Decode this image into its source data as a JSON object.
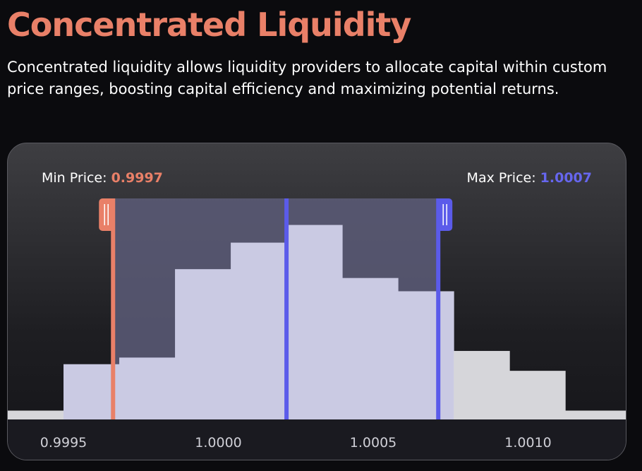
{
  "header": {
    "title": "Concentrated Liquidity",
    "subtitle": "Concentrated liquidity allows liquidity providers to allocate capital within custom price ranges, boosting capital efficiency and maximizing potential returns."
  },
  "range": {
    "min_label": "Min Price:",
    "min_value": "0.9997",
    "max_label": "Max Price:",
    "max_value": "1.0007",
    "current_price": 1.00022,
    "min_price": 0.99966,
    "max_price": 1.00071
  },
  "colors": {
    "accent_min": "#e98068",
    "accent_max": "#5b5bea",
    "bar_in_range": "#cacae3",
    "bar_out_range": "#d6d6da",
    "range_fill": "#5c5c78"
  },
  "chart_data": {
    "type": "bar",
    "x_ticks": [
      "0.9995",
      "1.0000",
      "1.0005",
      "1.0010"
    ],
    "x_tick_values": [
      0.9995,
      1.0,
      1.0005,
      1.001
    ],
    "xlim": [
      0.99932,
      1.00132
    ],
    "ylim": [
      0,
      100
    ],
    "bins": [
      {
        "x0": 0.99932,
        "x1": 0.9995,
        "value": 4
      },
      {
        "x0": 0.9995,
        "x1": 0.99968,
        "value": 25
      },
      {
        "x0": 0.99968,
        "x1": 0.99986,
        "value": 28
      },
      {
        "x0": 0.99986,
        "x1": 1.00004,
        "value": 68
      },
      {
        "x0": 1.00004,
        "x1": 1.00022,
        "value": 80
      },
      {
        "x0": 1.00022,
        "x1": 1.0004,
        "value": 88
      },
      {
        "x0": 1.0004,
        "x1": 1.00058,
        "value": 64
      },
      {
        "x0": 1.00058,
        "x1": 1.00076,
        "value": 58
      },
      {
        "x0": 1.00076,
        "x1": 1.00094,
        "value": 31
      },
      {
        "x0": 1.00094,
        "x1": 1.00112,
        "value": 22
      },
      {
        "x0": 1.00112,
        "x1": 1.00132,
        "value": 4
      }
    ]
  }
}
